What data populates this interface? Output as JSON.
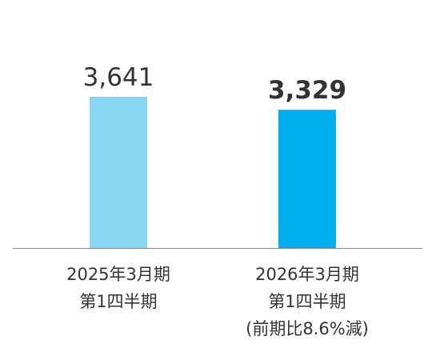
{
  "chart_data": {
    "type": "bar",
    "categories": [
      [
        "2025年3月期",
        "第1四半期"
      ],
      [
        "2026年3月期",
        "第1四半期",
        "(前期比8.6%減)"
      ]
    ],
    "values": [
      3641,
      3329
    ],
    "data_labels": [
      "3,641",
      "3,329"
    ],
    "bar_colors": [
      "#87D7F2",
      "#00AEEF"
    ],
    "label_weights": [
      "normal",
      "bold"
    ],
    "axis_color": "#888888",
    "text_color": "#333333",
    "grid": false,
    "ylim": [
      0,
      4000
    ]
  }
}
